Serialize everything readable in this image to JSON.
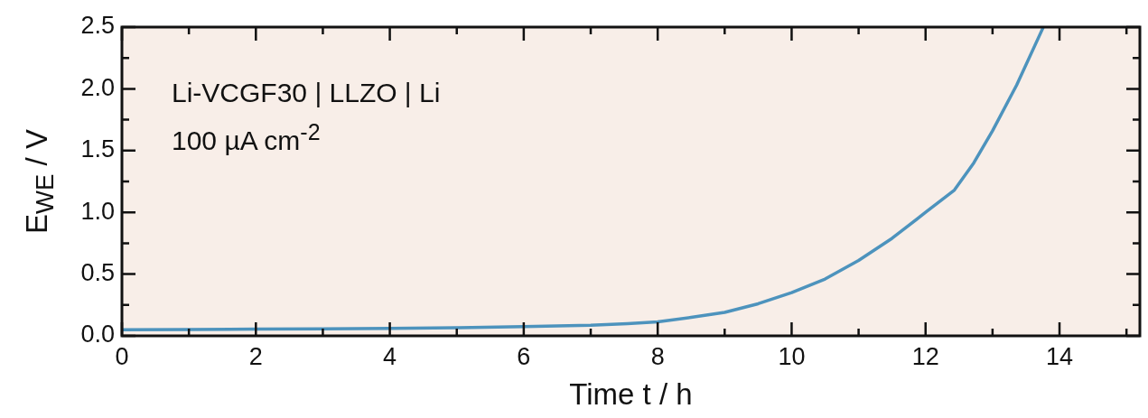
{
  "chart_data": {
    "type": "line",
    "xlabel": "Time t / h",
    "ylabel": "E$_{WE}$ / V",
    "annotations": [
      "Li-VCGF30 | LLZO | Li",
      "100 µA cm$^{-2}$"
    ],
    "series": [
      {
        "color": "#4d93bd",
        "x": [
          0,
          1,
          2,
          3,
          4,
          5,
          6,
          7,
          7.55,
          8,
          8.5,
          9,
          9.5,
          10,
          10.5,
          11,
          11.5,
          12,
          12.43,
          12.72,
          13,
          13.36,
          13.75
        ],
        "values": [
          0.05,
          0.052,
          0.055,
          0.057,
          0.06,
          0.065,
          0.075,
          0.085,
          0.098,
          0.114,
          0.15,
          0.19,
          0.26,
          0.35,
          0.46,
          0.61,
          0.79,
          1.0,
          1.18,
          1.4,
          1.66,
          2.03,
          2.49
        ]
      }
    ],
    "xlim": [
      0,
      15.2
    ],
    "xticks": [
      0,
      {
        "value": 1,
        "label": null
      },
      2,
      {
        "value": 3,
        "label": null
      },
      4,
      {
        "value": 5,
        "label": null
      },
      6,
      {
        "value": 7,
        "label": null
      },
      8,
      {
        "value": 9,
        "label": null
      },
      10,
      {
        "value": 11,
        "label": null
      },
      12,
      {
        "value": 13,
        "label": null
      },
      14,
      {
        "value": 15,
        "label": null
      }
    ],
    "ylim": [
      0,
      2.5
    ],
    "yticks": [
      {
        "value": 0,
        "label": "0.0"
      },
      {
        "value": 0.25,
        "label": null
      },
      {
        "value": 0.5,
        "label": "0.5"
      },
      {
        "value": 0.75,
        "label": null
      },
      {
        "value": 1,
        "label": "1.0"
      },
      {
        "value": 1.25,
        "label": null
      },
      {
        "value": 1.5,
        "label": "1.5"
      },
      {
        "value": 1.75,
        "label": null
      },
      {
        "value": 2,
        "label": "2.0"
      },
      {
        "value": 2.25,
        "label": null
      },
      {
        "value": 2.5,
        "label": "2.5"
      }
    ],
    "grid": false,
    "legend": false,
    "marker": "none",
    "line_style": "solid"
  }
}
